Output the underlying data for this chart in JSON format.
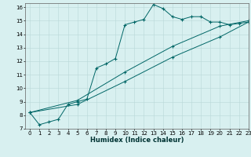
{
  "xlabel": "Humidex (Indice chaleur)",
  "bg_color": "#d8f0f0",
  "grid_color": "#b8d8d8",
  "line_color": "#006666",
  "xlim": [
    -0.5,
    23
  ],
  "ylim": [
    7,
    16.3
  ],
  "xticks": [
    0,
    1,
    2,
    3,
    4,
    5,
    6,
    7,
    8,
    9,
    10,
    11,
    12,
    13,
    14,
    15,
    16,
    17,
    18,
    19,
    20,
    21,
    22,
    23
  ],
  "yticks": [
    7,
    8,
    9,
    10,
    11,
    12,
    13,
    14,
    15,
    16
  ],
  "series1_x": [
    0,
    1,
    2,
    3,
    4,
    5,
    6,
    7,
    8,
    9,
    10,
    11,
    12,
    13,
    14,
    15,
    16,
    17,
    18,
    19,
    20,
    21,
    22,
    23
  ],
  "series1_y": [
    8.2,
    7.3,
    7.5,
    7.7,
    8.8,
    9.0,
    9.2,
    11.5,
    11.8,
    12.2,
    14.7,
    14.9,
    15.1,
    16.2,
    15.9,
    15.3,
    15.1,
    15.3,
    15.3,
    14.9,
    14.9,
    14.7,
    14.8,
    14.9
  ],
  "series2_x": [
    0,
    5,
    10,
    15,
    20,
    23
  ],
  "series2_y": [
    8.2,
    9.1,
    11.2,
    13.1,
    14.6,
    15.0
  ],
  "series3_x": [
    0,
    5,
    10,
    15,
    20,
    23
  ],
  "series3_y": [
    8.2,
    8.8,
    10.5,
    12.3,
    13.8,
    14.9
  ],
  "tick_fontsize": 5.0,
  "xlabel_fontsize": 6.0
}
